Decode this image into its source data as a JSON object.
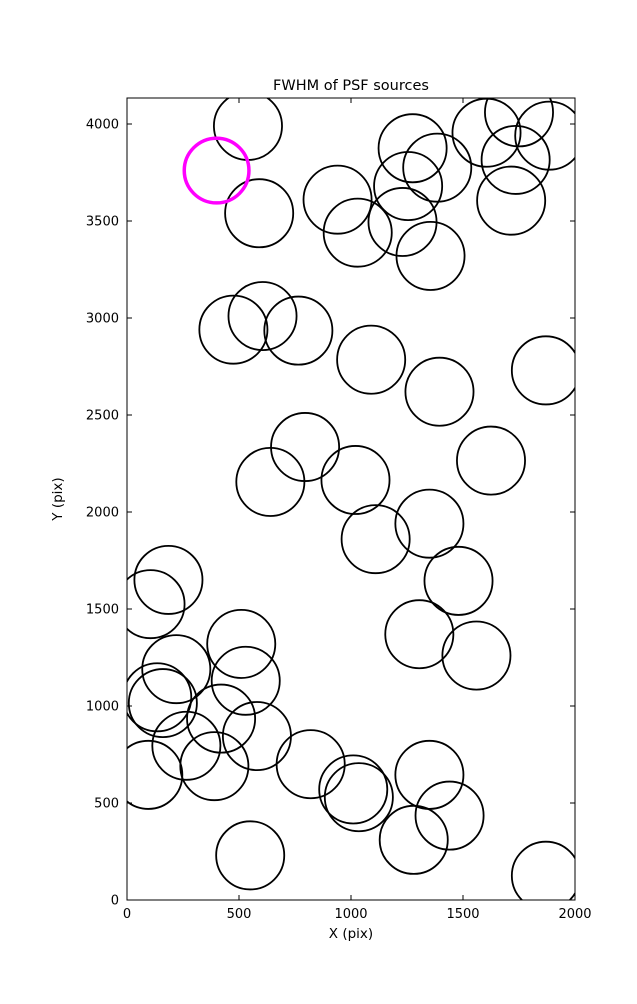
{
  "chart_data": {
    "type": "scatter",
    "title": "FWHM of PSF sources",
    "xlabel": "X (pix)",
    "ylabel": "Y (pix)",
    "xlim": [
      0,
      2000
    ],
    "ylim": [
      0,
      4134
    ],
    "xticks": [
      0,
      500,
      1000,
      1500,
      2000
    ],
    "yticks": [
      0,
      500,
      1000,
      1500,
      2000,
      2500,
      3000,
      3500,
      4000
    ],
    "grid": false,
    "legend": "none",
    "marker": "open-circle",
    "circle_radius_data_units": 152,
    "circle_color": "#000000",
    "circle_stroke_px": 1.8,
    "highlight_color": "#ff00ff",
    "highlight_stroke_px": 3.5,
    "highlight_source": [
      400,
      3760
    ],
    "sources": [
      [
        540,
        3990
      ],
      [
        590,
        3540
      ],
      [
        940,
        3610
      ],
      [
        1030,
        3440
      ],
      [
        1255,
        3680
      ],
      [
        1230,
        3495
      ],
      [
        1355,
        3320
      ],
      [
        1385,
        3775
      ],
      [
        1275,
        3875
      ],
      [
        1605,
        3955
      ],
      [
        1750,
        4060
      ],
      [
        1735,
        3815
      ],
      [
        1715,
        3605
      ],
      [
        1885,
        3940
      ],
      [
        475,
        2940
      ],
      [
        605,
        3010
      ],
      [
        765,
        2935
      ],
      [
        1090,
        2785
      ],
      [
        1395,
        2620
      ],
      [
        1870,
        2730
      ],
      [
        795,
        2335
      ],
      [
        640,
        2155
      ],
      [
        1020,
        2165
      ],
      [
        1110,
        1860
      ],
      [
        1350,
        1940
      ],
      [
        1625,
        2265
      ],
      [
        185,
        1650
      ],
      [
        105,
        1525
      ],
      [
        1480,
        1645
      ],
      [
        1305,
        1370
      ],
      [
        1560,
        1260
      ],
      [
        510,
        1320
      ],
      [
        220,
        1190
      ],
      [
        530,
        1130
      ],
      [
        135,
        1045
      ],
      [
        160,
        1015
      ],
      [
        420,
        935
      ],
      [
        265,
        795
      ],
      [
        95,
        645
      ],
      [
        390,
        690
      ],
      [
        580,
        845
      ],
      [
        820,
        700
      ],
      [
        1010,
        570
      ],
      [
        1035,
        530
      ],
      [
        1350,
        645
      ],
      [
        1280,
        310
      ],
      [
        1440,
        435
      ],
      [
        550,
        230
      ],
      [
        1870,
        125
      ]
    ]
  }
}
